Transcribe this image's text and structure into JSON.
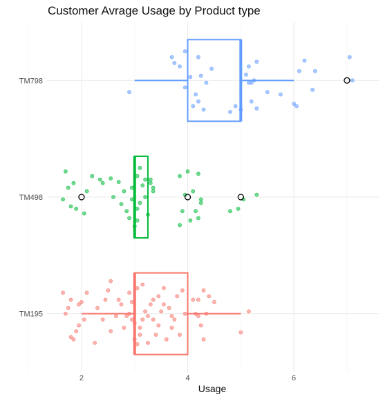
{
  "chart_data": {
    "type": "boxplot",
    "title": "Customer Avrage Usage by Product type",
    "xlabel": "Usage",
    "ylabel": "",
    "xlim": [
      1.35,
      7.6
    ],
    "x_ticks": [
      2,
      4,
      6
    ],
    "grid": true,
    "categories": [
      "TM798",
      "TM498",
      "TM195"
    ],
    "series": [
      {
        "category": "TM798",
        "color": "#619CFF",
        "box": {
          "min": 3,
          "q1": 4,
          "median": 5,
          "q3": 5,
          "max": 6
        },
        "outliers": [
          7
        ],
        "jitter": [
          [
            2.9,
            0.1
          ],
          [
            4.1,
            0.22
          ],
          [
            4.2,
            0.18
          ],
          [
            4.3,
            0.25
          ],
          [
            4.15,
            0.12
          ],
          [
            3.95,
            0.06
          ],
          [
            4.35,
            0.02
          ],
          [
            4.05,
            -0.03
          ],
          [
            4.25,
            -0.04
          ],
          [
            3.75,
            -0.15
          ],
          [
            3.7,
            -0.2
          ],
          [
            3.95,
            -0.25
          ],
          [
            4.2,
            -0.2
          ],
          [
            3.85,
            -0.12
          ],
          [
            4.45,
            -0.1
          ],
          [
            4.8,
            0.27
          ],
          [
            5.0,
            0.25
          ],
          [
            4.9,
            0.22
          ],
          [
            5.3,
            0.24
          ],
          [
            5.2,
            0.18
          ],
          [
            5.15,
            0.02
          ],
          [
            5.25,
            0.0
          ],
          [
            5.1,
            -0.05
          ],
          [
            5.5,
            0.1
          ],
          [
            5.75,
            0.12
          ],
          [
            6.0,
            0.2
          ],
          [
            6.05,
            0.22
          ],
          [
            6.35,
            0.08
          ],
          [
            6.1,
            -0.08
          ],
          [
            6.2,
            -0.17
          ],
          [
            6.4,
            -0.08
          ],
          [
            7.1,
            0.0
          ],
          [
            7.05,
            -0.2
          ],
          [
            5.15,
            -0.12
          ],
          [
            5.3,
            -0.16
          ],
          [
            5.2,
            0.02
          ]
        ]
      },
      {
        "category": "TM498",
        "color": "#00BA38",
        "box": {
          "min": 3,
          "q1": 3,
          "median": 3,
          "q3": 3.25,
          "max": 3.25
        },
        "outliers": [
          2,
          4,
          5
        ],
        "jitter": [
          [
            1.65,
            0.02
          ],
          [
            1.8,
            0.08
          ],
          [
            1.9,
            0.1
          ],
          [
            2.05,
            0.14
          ],
          [
            1.75,
            -0.08
          ],
          [
            1.85,
            -0.12
          ],
          [
            2.1,
            -0.05
          ],
          [
            2.2,
            -0.18
          ],
          [
            1.7,
            -0.22
          ],
          [
            2.4,
            -0.12
          ],
          [
            2.35,
            -0.15
          ],
          [
            2.6,
            0.0
          ],
          [
            2.55,
            -0.16
          ],
          [
            2.85,
            0.12
          ],
          [
            2.9,
            0.18
          ],
          [
            2.75,
            0.06
          ],
          [
            2.8,
            -0.05
          ],
          [
            2.7,
            -0.13
          ],
          [
            2.95,
            -0.08
          ],
          [
            3.0,
            0.25
          ],
          [
            3.05,
            0.1
          ],
          [
            3.1,
            0.05
          ],
          [
            3.15,
            -0.1
          ],
          [
            3.2,
            -0.15
          ],
          [
            3.25,
            0.15
          ],
          [
            3.3,
            -0.12
          ],
          [
            3.35,
            -0.08
          ],
          [
            2.95,
            0.02
          ],
          [
            3.05,
            -0.18
          ],
          [
            3.2,
            0.0
          ],
          [
            3.1,
            -0.25
          ],
          [
            3.35,
            -0.05
          ],
          [
            3.3,
            -0.15
          ],
          [
            3.05,
            0.2
          ],
          [
            3.85,
            0.24
          ],
          [
            4.2,
            0.18
          ],
          [
            4.15,
            0.12
          ],
          [
            4.05,
            0.2
          ],
          [
            3.9,
            0.12
          ],
          [
            4.25,
            0.05
          ],
          [
            3.95,
            -0.02
          ],
          [
            4.0,
            -0.22
          ],
          [
            3.85,
            -0.18
          ],
          [
            4.25,
            0.02
          ],
          [
            4.8,
            0.12
          ],
          [
            4.95,
            0.1
          ],
          [
            5.05,
            0.02
          ],
          [
            5.3,
            -0.02
          ],
          [
            4.1,
            -0.05
          ],
          [
            4.2,
            -0.2
          ]
        ]
      },
      {
        "category": "TM195",
        "color": "#F8766D",
        "box": {
          "min": 2,
          "q1": 3,
          "median": 3,
          "q3": 4,
          "max": 5
        },
        "outliers": [],
        "jitter": [
          [
            1.65,
            -0.18
          ],
          [
            1.75,
            -0.05
          ],
          [
            1.8,
            0.2
          ],
          [
            1.85,
            0.22
          ],
          [
            1.9,
            0.15
          ],
          [
            1.7,
            0.0
          ],
          [
            1.8,
            -0.12
          ],
          [
            1.95,
            -0.08
          ],
          [
            2.05,
            0.05
          ],
          [
            2.1,
            -0.18
          ],
          [
            1.95,
            0.1
          ],
          [
            2.25,
            0.25
          ],
          [
            2.3,
            -0.05
          ],
          [
            2.45,
            -0.12
          ],
          [
            2.55,
            0.15
          ],
          [
            2.5,
            -0.2
          ],
          [
            2.55,
            -0.28
          ],
          [
            2.7,
            -0.12
          ],
          [
            2.75,
            -0.08
          ],
          [
            2.8,
            0.12
          ],
          [
            2.85,
            0.02
          ],
          [
            2.95,
            -0.1
          ],
          [
            2.9,
            -0.18
          ],
          [
            3.0,
            0.22
          ],
          [
            3.05,
            0.26
          ],
          [
            3.1,
            0.18
          ],
          [
            3.15,
            0.05
          ],
          [
            3.2,
            -0.02
          ],
          [
            3.25,
            0.02
          ],
          [
            2.95,
            0.05
          ],
          [
            3.05,
            -0.22
          ],
          [
            3.15,
            -0.25
          ],
          [
            3.0,
            0.08
          ],
          [
            3.1,
            0.12
          ],
          [
            2.9,
            0.0
          ],
          [
            3.25,
            0.25
          ],
          [
            3.3,
            -0.08
          ],
          [
            3.35,
            -0.12
          ],
          [
            3.45,
            0.1
          ],
          [
            3.6,
            0.22
          ],
          [
            3.5,
            -0.02
          ],
          [
            3.4,
            0.18
          ],
          [
            3.55,
            -0.22
          ],
          [
            3.65,
            -0.05
          ],
          [
            3.7,
            0.02
          ],
          [
            3.75,
            0.05
          ],
          [
            3.8,
            -0.15
          ],
          [
            3.7,
            0.12
          ],
          [
            3.85,
            0.18
          ],
          [
            3.95,
            0.0
          ],
          [
            4.1,
            -0.12
          ],
          [
            4.15,
            0.0
          ],
          [
            4.2,
            0.02
          ],
          [
            4.25,
            0.1
          ],
          [
            4.3,
            0.22
          ],
          [
            4.35,
            0.0
          ],
          [
            4.4,
            -0.15
          ],
          [
            4.5,
            -0.1
          ],
          [
            4.3,
            -0.2
          ],
          [
            4.2,
            -0.12
          ],
          [
            3.55,
            -0.08
          ],
          [
            3.45,
            -0.15
          ],
          [
            5.0,
            0.16
          ],
          [
            5.15,
            -0.02
          ],
          [
            3.9,
            -0.2
          ],
          [
            2.4,
            0.05
          ],
          [
            2.65,
            0.02
          ],
          [
            2.0,
            -0.1
          ],
          [
            3.35,
            0.05
          ]
        ]
      }
    ]
  }
}
